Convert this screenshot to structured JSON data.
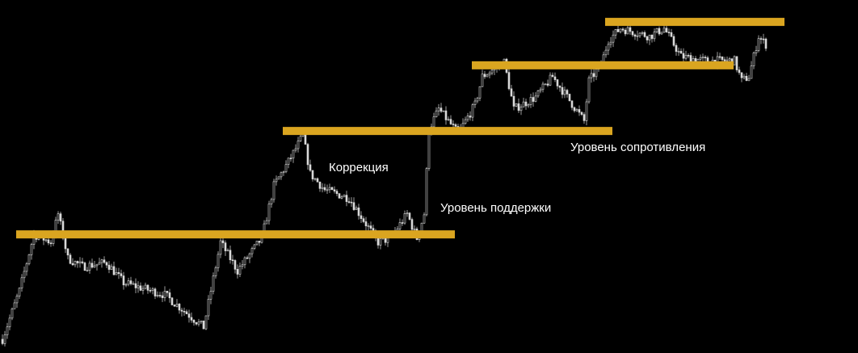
{
  "chart_data": {
    "type": "candlestick",
    "title": "",
    "xlabel": "",
    "ylabel": "",
    "ylim": [
      0,
      100
    ],
    "grid": false,
    "background": "#000000",
    "candle_color": "#d9d9d9",
    "level_color": "#DAA520",
    "price_path": {
      "x": [
        0,
        7,
        13,
        20,
        23,
        27,
        33,
        43,
        50,
        67,
        83,
        90,
        97,
        107,
        112,
        118,
        124,
        127,
        133,
        143,
        155,
        160,
        167,
        171,
        174,
        176,
        180,
        188,
        195,
        198,
        207,
        211,
        220,
        227,
        233,
        240,
        242,
        247,
        250,
        255,
        267,
        273,
        280,
        290,
        302,
        305,
        308,
        312,
        315
      ],
      "y": [
        3.9,
        17.6,
        33.6,
        31.4,
        39.4,
        26.8,
        24.5,
        25.6,
        19.9,
        16.5,
        7.3,
        31.4,
        23.3,
        32.5,
        47.4,
        54.2,
        61.6,
        50.8,
        46.2,
        43.9,
        31.4,
        32.5,
        39.4,
        32.5,
        39.4,
        63.4,
        69.1,
        62.2,
        70.3,
        78.3,
        82.4,
        69.1,
        72.5,
        78.3,
        72.5,
        65.7,
        77.1,
        81.7,
        88.6,
        92.0,
        89.7,
        92.0,
        84.0,
        82.8,
        82.8,
        77.1,
        78.3,
        89.7,
        87.4
      ]
    },
    "levels": [
      {
        "price": 33.6,
        "from": 6,
        "to": 187
      },
      {
        "price": 62.9,
        "from": 116,
        "to": 252
      },
      {
        "price": 81.5,
        "from": 194,
        "to": 302
      },
      {
        "price": 93.8,
        "from": 249,
        "to": 323
      }
    ],
    "annotations": {
      "correction": "Коррекция",
      "support": "Уровень поддержки",
      "resistance": "Уровень сопротивления"
    }
  }
}
